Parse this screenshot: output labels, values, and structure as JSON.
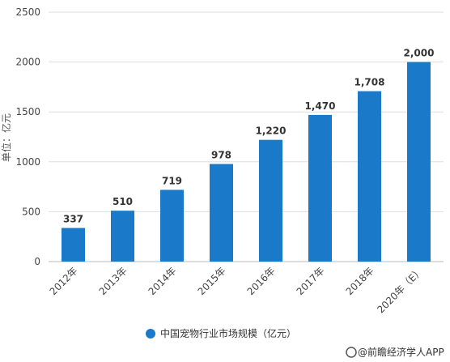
{
  "chart_data": {
    "type": "bar",
    "categories": [
      "2012年",
      "2013年",
      "2014年",
      "2015年",
      "2016年",
      "2017年",
      "2018年",
      "2020年（E）"
    ],
    "values": [
      337,
      510,
      719,
      978,
      1220,
      1470,
      1708,
      2000
    ],
    "value_labels": [
      "337",
      "510",
      "719",
      "978",
      "1,220",
      "1,470",
      "1,708",
      "2,000"
    ],
    "ylabel": "单位：亿元",
    "ylim": [
      0,
      2500
    ],
    "yticks": [
      0,
      500,
      1000,
      1500,
      2000,
      2500
    ],
    "grid": true,
    "series": [
      {
        "name": "中国宠物行业市场规模（亿元）",
        "color": "#1a7ac9"
      }
    ],
    "legend_position": "bottom-center"
  },
  "footer": {
    "source_text": "@前瞻经济学人APP"
  },
  "colors": {
    "bar": "#1a7ac9",
    "grid": "#dddddd",
    "axis": "#bbbbbb"
  }
}
